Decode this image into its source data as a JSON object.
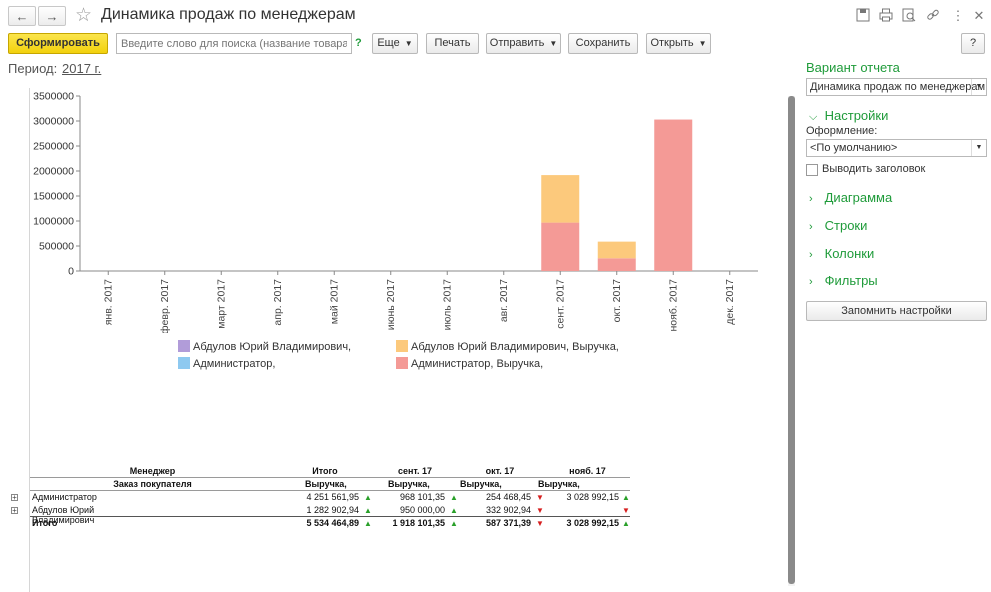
{
  "window": {
    "title": "Динамика продаж по менеджерам",
    "back_icon": "←",
    "forward_icon": "→",
    "star_icon": "☆",
    "toolbar_icons": [
      "💾",
      "🖶",
      "🔍",
      "🔗",
      "⋮",
      "✕"
    ]
  },
  "toolbar": {
    "generate": "Сформировать",
    "search_placeholder": "Введите слово для поиска (название товара, по...",
    "help_q": "?",
    "more": "Еще",
    "print": "Печать",
    "send": "Отправить",
    "save": "Сохранить",
    "open": "Открыть",
    "help": "?"
  },
  "period": {
    "label": "Период:",
    "value": "2017 г."
  },
  "chart_data": {
    "type": "bar",
    "stacked": true,
    "categories": [
      "янв. 2017",
      "февр. 2017",
      "март 2017",
      "апр. 2017",
      "май 2017",
      "июнь 2017",
      "июль 2017",
      "авг. 2017",
      "сент. 2017",
      "окт. 2017",
      "нояб. 2017",
      "дек. 2017"
    ],
    "ylim": [
      0,
      3500000
    ],
    "yticks": [
      0,
      500000,
      1000000,
      1500000,
      2000000,
      2500000,
      3000000,
      3500000
    ],
    "series": [
      {
        "name": "Абдулов Юрий Владимирович,",
        "color": "#b19cd9",
        "values": [
          0,
          0,
          0,
          0,
          0,
          0,
          0,
          0,
          0,
          0,
          0,
          0
        ]
      },
      {
        "name": "Администратор,",
        "color": "#8ec9f0",
        "values": [
          0,
          0,
          0,
          0,
          0,
          0,
          0,
          0,
          0,
          0,
          0,
          0
        ]
      },
      {
        "name": "Администратор, Выручка,",
        "color": "#f49a96",
        "values": [
          0,
          0,
          0,
          0,
          0,
          0,
          0,
          0,
          968101.35,
          254468.45,
          3028992.15,
          0
        ]
      },
      {
        "name": "Абдулов Юрий Владимирович, Выручка,",
        "color": "#fcc97c",
        "values": [
          0,
          0,
          0,
          0,
          0,
          0,
          0,
          0,
          950000.0,
          332902.94,
          0,
          0
        ]
      }
    ],
    "grid": false,
    "legend": "bottom"
  },
  "table": {
    "header1": {
      "manager": "Менеджер",
      "total": "Итого",
      "c1": "сент. 17",
      "c2": "окт. 17",
      "c3": "нояб. 17"
    },
    "header2": {
      "order": "Заказ покупателя",
      "m": "Выручка,"
    },
    "rows": [
      {
        "name": "Администратор",
        "total": "4 251 561,95",
        "c1": "968 101,35",
        "c2": "254 468,45",
        "c3": "3 028 992,15"
      },
      {
        "name": "Абдулов Юрий Владимирович",
        "total": "1 282 902,94",
        "c1": "950 000,00",
        "c2": "332 902,94",
        "c3": ""
      }
    ],
    "totals": {
      "name": "Итого",
      "total": "5 534 464,89",
      "c1": "1 918 101,35",
      "c2": "587 371,39",
      "c3": "3 028 992,15"
    }
  },
  "panel": {
    "title": "Вариант отчета",
    "variant": "Динамика продаж по менеджерам",
    "settings": "Настройки",
    "design_label": "Оформление:",
    "design_value": "<По умолчанию>",
    "show_header": "Выводить заголовок",
    "sections": [
      "Диаграмма",
      "Строки",
      "Колонки",
      "Фильтры"
    ],
    "remember": "Запомнить настройки"
  },
  "colors": {
    "accent_green": "#1f9b3a",
    "primary_yellow": "#f6d81f"
  }
}
